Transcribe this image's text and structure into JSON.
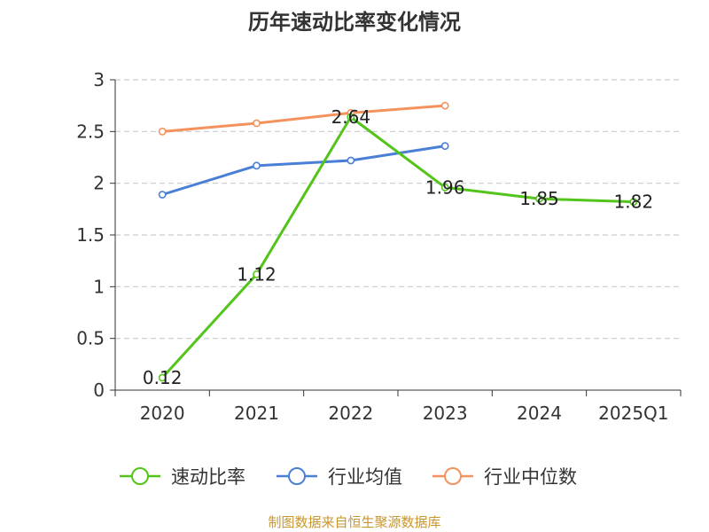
{
  "chart_data": {
    "type": "line",
    "title": "历年速动比率变化情况",
    "categories": [
      "2020",
      "2021",
      "2022",
      "2023",
      "2024",
      "2025Q1"
    ],
    "ylim": [
      0,
      3
    ],
    "yticks": [
      "0",
      "0.5",
      "1",
      "1.5",
      "2",
      "2.5",
      "3"
    ],
    "grid": true,
    "legend_position": "bottom",
    "series": [
      {
        "name": "速动比率",
        "color": "#52c41a",
        "values": [
          0.12,
          1.12,
          2.64,
          1.96,
          1.85,
          1.82
        ],
        "labels": [
          "0.12",
          "1.12",
          "2.64",
          "1.96",
          "1.85",
          "1.82"
        ]
      },
      {
        "name": "行业均值",
        "color": "#4a7fd6",
        "values": [
          1.89,
          2.17,
          2.22,
          2.36,
          null,
          null
        ]
      },
      {
        "name": "行业中位数",
        "color": "#f4925e",
        "values": [
          2.5,
          2.58,
          2.68,
          2.75,
          null,
          null
        ]
      }
    ],
    "source": "制图数据来自恒生聚源数据库"
  }
}
